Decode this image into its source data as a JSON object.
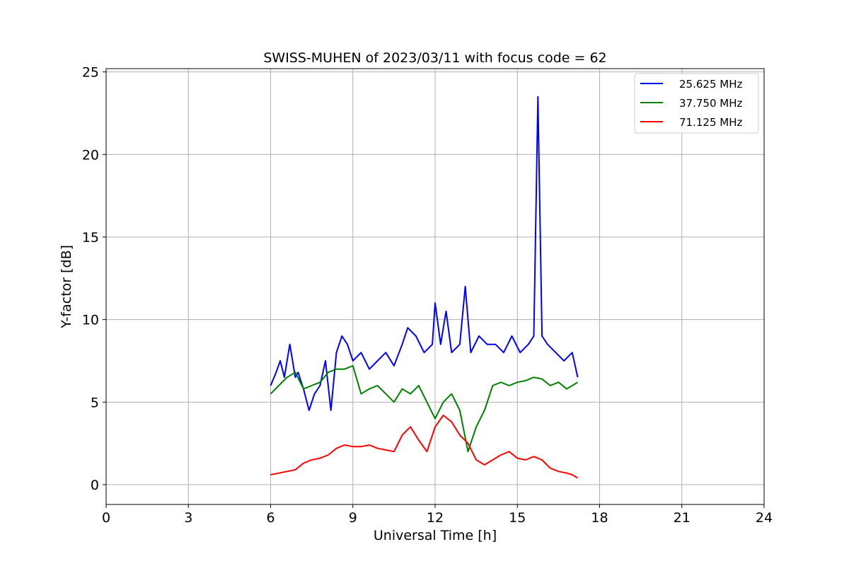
{
  "chart_data": {
    "type": "line",
    "title": "SWISS-MUHEN of 2023/03/11 with focus code = 62",
    "xlabel": "Universal Time [h]",
    "ylabel": "Y-factor [dB]",
    "xlim": [
      0,
      24
    ],
    "ylim": [
      -1.2,
      25.2
    ],
    "x_ticks": [
      0,
      3,
      6,
      9,
      12,
      15,
      18,
      21,
      24
    ],
    "y_ticks": [
      0,
      5,
      10,
      15,
      20,
      25
    ],
    "grid": true,
    "legend_position": "top-right",
    "series": [
      {
        "name": "25.625 MHz",
        "color": "#0000ff",
        "x": [
          6.0,
          6.2,
          6.35,
          6.5,
          6.7,
          6.9,
          7.0,
          7.2,
          7.4,
          7.6,
          7.8,
          8.0,
          8.2,
          8.4,
          8.6,
          8.8,
          9.0,
          9.3,
          9.6,
          9.9,
          10.2,
          10.5,
          10.8,
          11.0,
          11.3,
          11.6,
          11.9,
          12.0,
          12.2,
          12.4,
          12.6,
          12.9,
          13.1,
          13.3,
          13.6,
          13.9,
          14.2,
          14.5,
          14.8,
          15.1,
          15.4,
          15.6,
          15.75,
          15.9,
          16.1,
          16.4,
          16.7,
          17.0,
          17.2
        ],
        "values": [
          6.0,
          6.8,
          7.5,
          6.5,
          8.5,
          6.5,
          6.8,
          5.8,
          4.5,
          5.5,
          6.0,
          7.5,
          4.5,
          8.0,
          9.0,
          8.5,
          7.5,
          8.0,
          7.0,
          7.5,
          8.0,
          7.2,
          8.5,
          9.5,
          9.0,
          8.0,
          8.5,
          11.0,
          8.5,
          10.5,
          8.0,
          8.5,
          12.0,
          8.0,
          9.0,
          8.5,
          8.5,
          8.0,
          9.0,
          8.0,
          8.5,
          9.0,
          23.5,
          9.0,
          8.5,
          8.0,
          7.5,
          8.0,
          6.5
        ]
      },
      {
        "name": "37.750 MHz",
        "color": "#008000",
        "x": [
          6.0,
          6.3,
          6.6,
          6.9,
          7.2,
          7.5,
          7.8,
          8.1,
          8.4,
          8.7,
          9.0,
          9.3,
          9.6,
          9.9,
          10.2,
          10.5,
          10.8,
          11.1,
          11.4,
          11.7,
          12.0,
          12.3,
          12.6,
          12.9,
          13.2,
          13.5,
          13.8,
          14.1,
          14.4,
          14.7,
          15.0,
          15.3,
          15.6,
          15.9,
          16.2,
          16.5,
          16.8,
          17.0,
          17.2
        ],
        "values": [
          5.5,
          6.0,
          6.5,
          6.8,
          5.8,
          6.0,
          6.2,
          6.8,
          7.0,
          7.0,
          7.2,
          5.5,
          5.8,
          6.0,
          5.5,
          5.0,
          5.8,
          5.5,
          6.0,
          5.0,
          4.0,
          5.0,
          5.5,
          4.5,
          2.0,
          3.5,
          4.5,
          6.0,
          6.2,
          6.0,
          6.2,
          6.3,
          6.5,
          6.4,
          6.0,
          6.2,
          5.8,
          6.0,
          6.2
        ]
      },
      {
        "name": "71.125 MHz",
        "color": "#ff0000",
        "x": [
          6.0,
          6.3,
          6.6,
          6.9,
          7.2,
          7.5,
          7.8,
          8.1,
          8.4,
          8.7,
          9.0,
          9.3,
          9.6,
          9.9,
          10.2,
          10.5,
          10.8,
          11.1,
          11.4,
          11.7,
          12.0,
          12.3,
          12.6,
          12.9,
          13.2,
          13.5,
          13.8,
          14.1,
          14.4,
          14.7,
          15.0,
          15.3,
          15.6,
          15.9,
          16.2,
          16.5,
          16.8,
          17.0,
          17.2
        ],
        "values": [
          0.6,
          0.7,
          0.8,
          0.9,
          1.3,
          1.5,
          1.6,
          1.8,
          2.2,
          2.4,
          2.3,
          2.3,
          2.4,
          2.2,
          2.1,
          2.0,
          3.0,
          3.5,
          2.7,
          2.0,
          3.5,
          4.2,
          3.8,
          3.0,
          2.5,
          1.5,
          1.2,
          1.5,
          1.8,
          2.0,
          1.6,
          1.5,
          1.7,
          1.5,
          1.0,
          0.8,
          0.7,
          0.6,
          0.4
        ]
      }
    ]
  }
}
